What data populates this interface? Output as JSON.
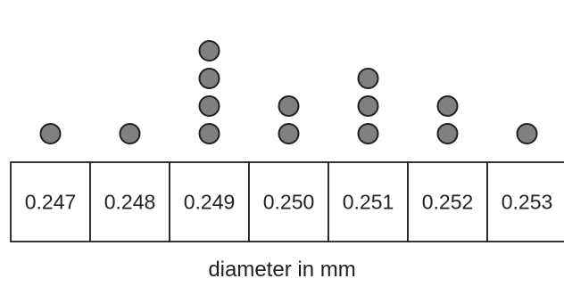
{
  "chart_data": {
    "type": "dot_plot",
    "categories": [
      "0.247",
      "0.248",
      "0.249",
      "0.250",
      "0.251",
      "0.252",
      "0.253"
    ],
    "values": [
      1,
      1,
      4,
      2,
      3,
      2,
      1
    ],
    "xlabel": "diameter in mm",
    "ylabel": "",
    "title": "",
    "grid": false,
    "colors": {
      "dot_fill": "#808080",
      "dot_stroke": "#231f20",
      "line": "#231f20"
    }
  }
}
